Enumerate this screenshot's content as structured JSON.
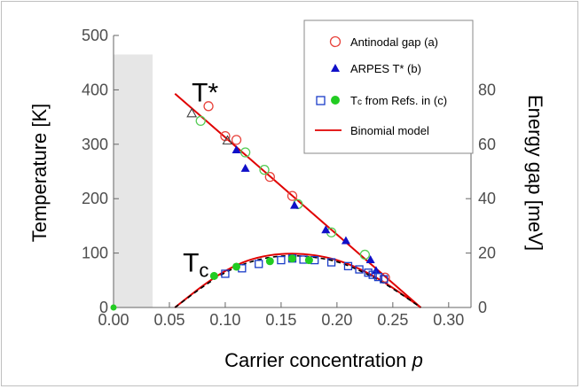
{
  "chart_data": {
    "type": "scatter",
    "xlabel": "Carrier concentration ",
    "xlabel_var": "p",
    "ylabel": "Temperature [K]",
    "y2label": "Energy gap [meV]",
    "xlim": [
      0.0,
      0.32
    ],
    "ylim": [
      0,
      500
    ],
    "y2lim": [
      0,
      100
    ],
    "x_ticks": [
      "0.00",
      "0.05",
      "0.10",
      "0.15",
      "0.20",
      "0.25",
      "0.30"
    ],
    "y_ticks": [
      "0",
      "100",
      "200",
      "300",
      "400",
      "500"
    ],
    "y2_ticks": [
      "0",
      "20",
      "40",
      "60",
      "80"
    ],
    "shaded_region": {
      "x": [
        0.0,
        0.035
      ],
      "y": [
        0,
        465
      ],
      "color": "#e6e6e6"
    },
    "annotations": [
      {
        "text": "T*",
        "x": 0.07,
        "y": 395
      },
      {
        "text": "T",
        "sub": "c",
        "x": 0.062,
        "y": 82
      }
    ],
    "legend": {
      "position": "top-right",
      "items": [
        {
          "label": "Antinodal gap (a)",
          "marker": "open-circle",
          "color": "#e8433c"
        },
        {
          "label": "ARPES T* (b)",
          "marker": "filled-triangle",
          "color": "#1010c8"
        },
        {
          "label_main": "T",
          "label_sub": "c",
          "label_rest": " from Refs. in (c)",
          "marker": "open-square+filled-circle",
          "color": "#1a3cc8",
          "color2": "#22cc22"
        },
        {
          "label": "Binomial model",
          "marker": "line",
          "color": "#e00000"
        }
      ]
    },
    "series": [
      {
        "name": "Antinodal gap (a)",
        "marker": "open-circle",
        "color": "#e8433c",
        "x": [
          0.085,
          0.1,
          0.11,
          0.14,
          0.16,
          0.243
        ],
        "y": [
          370,
          315,
          308,
          240,
          205,
          55
        ]
      },
      {
        "marker": "open-circle",
        "color": "#55cc55",
        "x": [
          0.078,
          0.118,
          0.135,
          0.165,
          0.195,
          0.225
        ],
        "y": [
          343,
          285,
          253,
          190,
          138,
          97
        ]
      },
      {
        "marker": "open-triangle",
        "color": "#444444",
        "x": [
          0.07,
          0.102
        ],
        "y": [
          357,
          307
        ]
      },
      {
        "name": "ARPES T* (b)",
        "marker": "filled-triangle",
        "color": "#1010c8",
        "x": [
          0.11,
          0.118,
          0.162,
          0.19,
          0.208,
          0.23,
          0.235
        ],
        "y": [
          290,
          256,
          188,
          143,
          123,
          88,
          68
        ]
      },
      {
        "marker": "open-square",
        "color": "#1a3cc8",
        "x": [
          0.1,
          0.115,
          0.13,
          0.15,
          0.16,
          0.17,
          0.18,
          0.195,
          0.21,
          0.22,
          0.228,
          0.232,
          0.237,
          0.242
        ],
        "y": [
          62,
          72,
          80,
          87,
          90,
          88,
          87,
          83,
          76,
          70,
          64,
          60,
          56,
          52
        ]
      },
      {
        "marker": "filled-circle",
        "color": "#22cc22",
        "x": [
          0.09,
          0.11,
          0.14,
          0.16,
          0.175
        ],
        "y": [
          58,
          75,
          85,
          90,
          87
        ]
      },
      {
        "name": "Binomial model",
        "type": "line",
        "color": "#e00000",
        "x": [
          0.055,
          0.275
        ],
        "y": [
          393,
          0
        ]
      },
      {
        "type": "curve",
        "color": "#e00000",
        "x": [
          0.055,
          0.08,
          0.1,
          0.12,
          0.14,
          0.16,
          0.18,
          0.2,
          0.22,
          0.24,
          0.26,
          0.275
        ],
        "y": [
          0,
          40,
          67,
          86,
          96,
          99,
          96,
          87,
          71,
          49,
          22,
          0
        ]
      },
      {
        "type": "dashed",
        "color": "#000000",
        "x": [
          0.055,
          0.08,
          0.1,
          0.12,
          0.14,
          0.16,
          0.18,
          0.2,
          0.22,
          0.24,
          0.26,
          0.275
        ],
        "y": [
          0,
          38,
          64,
          82,
          92,
          95,
          92,
          84,
          68,
          47,
          21,
          0
        ]
      }
    ]
  }
}
